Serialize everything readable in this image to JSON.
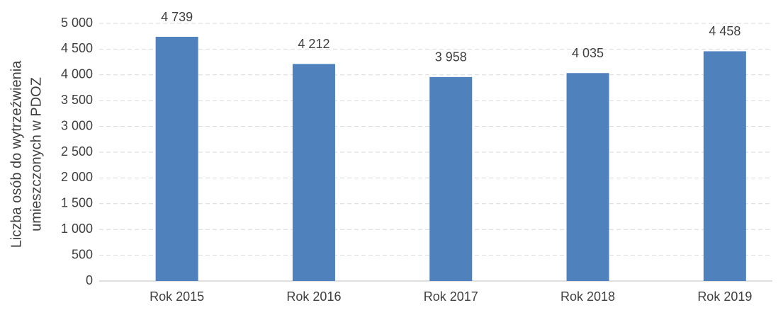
{
  "chart_data": {
    "type": "bar",
    "ylabel": [
      "Liczba osób do wytrzeźwienia",
      "umieszczonych w PDOZ"
    ],
    "categories": [
      "Rok 2015",
      "Rok 2016",
      "Rok 2017",
      "Rok 2018",
      "Rok 2019"
    ],
    "values": [
      4739,
      4212,
      3958,
      4035,
      4458
    ],
    "value_labels": [
      "4 739",
      "4 212",
      "3 958",
      "4 035",
      "4 458"
    ],
    "color": "#4f81bd",
    "ylim": [
      0,
      5000
    ],
    "yticks": [
      0,
      500,
      {
        "value": 1000,
        "label": "1 000"
      },
      {
        "value": 1500,
        "label": "1 500"
      },
      {
        "value": 2000,
        "label": "2 000"
      },
      {
        "value": 2500,
        "label": "2 500"
      },
      {
        "value": 3000,
        "label": "3 000"
      },
      {
        "value": 3500,
        "label": "3 500"
      },
      {
        "value": 4000,
        "label": "4 000"
      },
      {
        "value": 4500,
        "label": "4 500"
      },
      {
        "value": 5000,
        "label": "5 000"
      }
    ],
    "grid": true
  }
}
